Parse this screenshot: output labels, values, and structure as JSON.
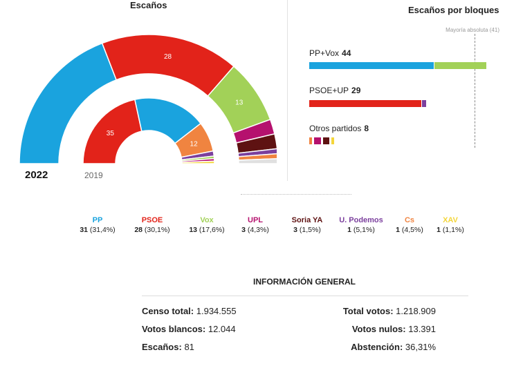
{
  "headers": {
    "seats_title": "Escaños",
    "blocs_title": "Escaños por bloques",
    "majority_label": "Mayoría absoluta (41)"
  },
  "years": {
    "current": "2022",
    "previous": "2019"
  },
  "colors": {
    "PP": "#1aa3de",
    "PSOE": "#e2231a",
    "Vox": "#a2d158",
    "UPL": "#b5116e",
    "SoriaYA": "#5e1212",
    "UPodemos": "#7b3f9d",
    "Cs": "#f08440",
    "XAV": "#f4d63a"
  },
  "chart_data": [
    {
      "type": "parliament",
      "name": "2022",
      "total": 81,
      "series": [
        {
          "party": "PP",
          "seats": 31,
          "color": "#1aa3de"
        },
        {
          "party": "PSOE",
          "seats": 28,
          "color": "#e2231a",
          "label": "28"
        },
        {
          "party": "Vox",
          "seats": 13,
          "color": "#a2d158",
          "label": "13"
        },
        {
          "party": "UPL",
          "seats": 3,
          "color": "#b5116e"
        },
        {
          "party": "Soria YA",
          "seats": 3,
          "color": "#5e1212"
        },
        {
          "party": "U. Podemos",
          "seats": 1,
          "color": "#7b3f9d"
        },
        {
          "party": "Cs",
          "seats": 1,
          "color": "#f08440"
        },
        {
          "party": "XAV",
          "seats": 1,
          "color": "#e0e0e0"
        }
      ]
    },
    {
      "type": "parliament",
      "name": "2019",
      "total": 81,
      "series": [
        {
          "party": "PSOE",
          "seats": 35,
          "color": "#e2231a",
          "label": "35"
        },
        {
          "party": "PP",
          "seats": 29,
          "color": "#1aa3de"
        },
        {
          "party": "Cs",
          "seats": 12,
          "color": "#f08440",
          "label": "12"
        },
        {
          "party": "U. Podemos",
          "seats": 2,
          "color": "#7b3f9d"
        },
        {
          "party": "Vox",
          "seats": 1,
          "color": "#a2d158"
        },
        {
          "party": "UPL",
          "seats": 1,
          "color": "#b5116e"
        },
        {
          "party": "XAV",
          "seats": 1,
          "color": "#f4d63a"
        }
      ]
    },
    {
      "type": "bar",
      "title": "Escaños por bloques",
      "xlim": [
        0,
        48
      ],
      "majority": 41,
      "blocs": [
        {
          "label": "PP+Vox",
          "total": 44,
          "segments": [
            {
              "party": "PP",
              "seats": 31,
              "color": "#1aa3de"
            },
            {
              "party": "Vox",
              "seats": 13,
              "color": "#a2d158"
            }
          ]
        },
        {
          "label": "PSOE+UP",
          "total": 29,
          "segments": [
            {
              "party": "PSOE",
              "seats": 28,
              "color": "#e2231a"
            },
            {
              "party": "U. Podemos",
              "seats": 1,
              "color": "#7b3f9d"
            }
          ]
        },
        {
          "label": "Otros partidos",
          "total": 8,
          "segments": [
            {
              "party": "Cs",
              "seats": 1,
              "color": "#f08440"
            },
            {
              "party": "UPL",
              "seats": 3,
              "color": "#b5116e"
            },
            {
              "party": "Soria YA",
              "seats": 3,
              "color": "#5e1212"
            },
            {
              "party": "XAV",
              "seats": 1,
              "color": "#f4d63a"
            }
          ]
        }
      ]
    }
  ],
  "legend": [
    {
      "name": "PP",
      "seats": "31",
      "pct": "(31,4%)",
      "color": "#1aa3de"
    },
    {
      "name": "PSOE",
      "seats": "28",
      "pct": "(30,1%)",
      "color": "#e2231a"
    },
    {
      "name": "Vox",
      "seats": "13",
      "pct": "(17,6%)",
      "color": "#a2d158"
    },
    {
      "name": "UPL",
      "seats": "3",
      "pct": "(4,3%)",
      "color": "#b5116e"
    },
    {
      "name": "Soria YA",
      "seats": "3",
      "pct": "(1,5%)",
      "color": "#5e1212"
    },
    {
      "name": "U. Podemos",
      "seats": "1",
      "pct": "(5,1%)",
      "color": "#7b3f9d"
    },
    {
      "name": "Cs",
      "seats": "1",
      "pct": "(4,5%)",
      "color": "#f08440"
    },
    {
      "name": "XAV",
      "seats": "1",
      "pct": "(1,1%)",
      "color": "#f4d63a"
    }
  ],
  "info": {
    "title": "INFORMACIÓN GENERAL",
    "censo_k": "Censo total:",
    "censo_v": "1.934.555",
    "blancos_k": "Votos blancos:",
    "blancos_v": "12.044",
    "escanos_k": "Escaños:",
    "escanos_v": "81",
    "total_k": "Total votos:",
    "total_v": "1.218.909",
    "nulos_k": "Votos nulos:",
    "nulos_v": "13.391",
    "abst_k": "Abstención:",
    "abst_v": "36,31%"
  }
}
